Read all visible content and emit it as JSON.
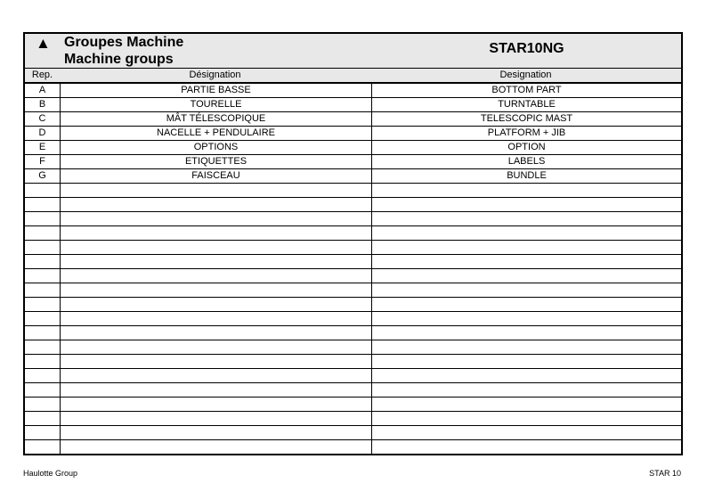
{
  "header": {
    "icon": "warning-triangle-icon",
    "title_fr": "Groupes Machine",
    "title_en": "Machine groups",
    "model": "STAR10NG"
  },
  "columns": {
    "rep": "Rep.",
    "designation_fr": "Désignation",
    "designation_en": "Designation"
  },
  "rows": [
    {
      "rep": "A",
      "fr": "PARTIE BASSE",
      "en": "BOTTOM PART"
    },
    {
      "rep": "B",
      "fr": "TOURELLE",
      "en": "TURNTABLE"
    },
    {
      "rep": "C",
      "fr": "MÂT TÉLESCOPIQUE",
      "en": "TELESCOPIC MAST"
    },
    {
      "rep": "D",
      "fr": "NACELLE + PENDULAIRE",
      "en": "PLATFORM + JIB"
    },
    {
      "rep": "E",
      "fr": "OPTIONS",
      "en": "OPTION"
    },
    {
      "rep": "F",
      "fr": "ETIQUETTES",
      "en": "LABELS"
    },
    {
      "rep": "G",
      "fr": "FAISCEAU",
      "en": "BUNDLE"
    }
  ],
  "footer": {
    "left": "Haulotte Group",
    "right": "STAR 10"
  }
}
